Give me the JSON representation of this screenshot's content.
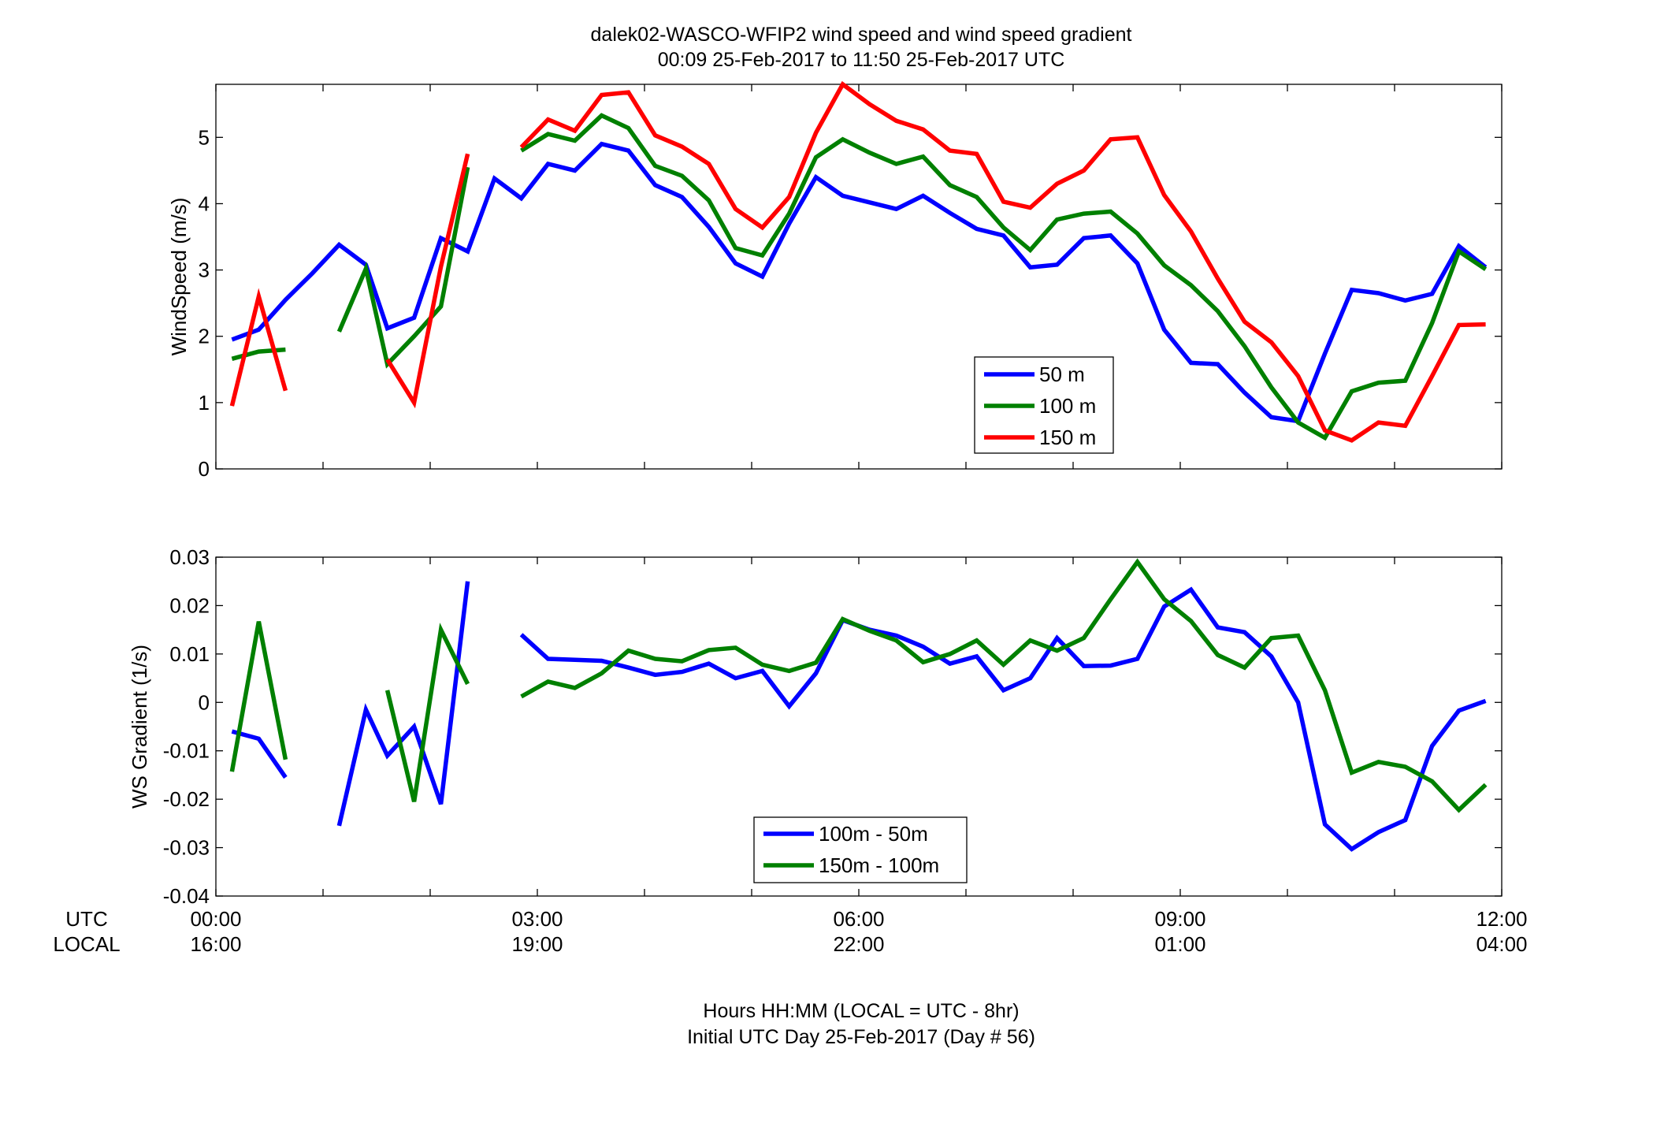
{
  "figure": {
    "title_line1": "dalek02-WASCO-WFIP2  wind speed and wind speed gradient",
    "title_line2": "00:09 25-Feb-2017 to 11:50 25-Feb-2017  UTC",
    "xlabel_line1": "Hours HH:MM  (LOCAL = UTC - 8hr)",
    "xlabel_line2": "Initial UTC Day 25-Feb-2017 (Day # 56)",
    "row_label_utc": "UTC",
    "row_label_local": "LOCAL",
    "x_ticks_utc": [
      "00:00",
      "03:00",
      "06:00",
      "09:00",
      "12:00"
    ],
    "x_ticks_local": [
      "16:00",
      "19:00",
      "22:00",
      "01:00",
      "04:00"
    ]
  },
  "chart_data": [
    {
      "type": "line",
      "ylabel": "WindSpeed (m/s)",
      "xlim": [
        0,
        12
      ],
      "ylim": [
        0,
        5.8
      ],
      "yticks": [
        0,
        1,
        2,
        3,
        4,
        5
      ],
      "ytick_labels": [
        "0",
        "1",
        "2",
        "3",
        "4",
        "5"
      ],
      "x_unit": "hours UTC",
      "legend_position": "lower-center-right",
      "series": [
        {
          "name": "50 m",
          "color": "#0000ff",
          "segments": [
            [
              [
                0.15,
                1.95
              ],
              [
                0.4,
                2.1
              ],
              [
                0.65,
                2.55
              ],
              [
                0.9,
                2.95
              ],
              [
                1.15,
                3.38
              ],
              [
                1.4,
                3.08
              ],
              [
                1.6,
                2.12
              ],
              [
                1.85,
                2.28
              ],
              [
                2.1,
                3.48
              ],
              [
                2.35,
                3.28
              ],
              [
                2.6,
                4.38
              ],
              [
                2.85,
                4.08
              ],
              [
                3.1,
                4.6
              ],
              [
                3.35,
                4.5
              ],
              [
                3.6,
                4.9
              ],
              [
                3.85,
                4.8
              ],
              [
                4.1,
                4.28
              ],
              [
                4.35,
                4.1
              ],
              [
                4.6,
                3.65
              ],
              [
                4.85,
                3.1
              ],
              [
                5.1,
                2.9
              ],
              [
                5.35,
                3.7
              ],
              [
                5.6,
                4.4
              ],
              [
                5.85,
                4.12
              ],
              [
                6.1,
                4.02
              ],
              [
                6.35,
                3.92
              ],
              [
                6.6,
                4.12
              ],
              [
                6.85,
                3.86
              ],
              [
                7.1,
                3.62
              ],
              [
                7.35,
                3.52
              ],
              [
                7.6,
                3.04
              ],
              [
                7.85,
                3.08
              ],
              [
                8.1,
                3.48
              ],
              [
                8.35,
                3.52
              ],
              [
                8.6,
                3.1
              ],
              [
                8.85,
                2.1
              ],
              [
                9.1,
                1.6
              ],
              [
                9.35,
                1.58
              ],
              [
                9.6,
                1.15
              ],
              [
                9.85,
                0.78
              ],
              [
                10.1,
                0.72
              ],
              [
                10.35,
                1.74
              ],
              [
                10.6,
                2.7
              ],
              [
                10.85,
                2.65
              ],
              [
                11.1,
                2.54
              ],
              [
                11.35,
                2.64
              ],
              [
                11.6,
                3.36
              ],
              [
                11.85,
                3.04
              ]
            ]
          ]
        },
        {
          "name": "100 m",
          "color": "#008000",
          "segments": [
            [
              [
                0.15,
                1.66
              ],
              [
                0.4,
                1.77
              ],
              [
                0.65,
                1.8
              ]
            ],
            [
              [
                1.15,
                2.07
              ],
              [
                1.4,
                3.02
              ],
              [
                1.6,
                1.58
              ],
              [
                1.85,
                2.0
              ],
              [
                2.1,
                2.45
              ],
              [
                2.35,
                4.55
              ]
            ],
            [
              [
                2.85,
                4.8
              ],
              [
                3.1,
                5.05
              ],
              [
                3.35,
                4.95
              ],
              [
                3.6,
                5.33
              ],
              [
                3.85,
                5.14
              ],
              [
                4.1,
                4.57
              ],
              [
                4.35,
                4.42
              ],
              [
                4.6,
                4.05
              ],
              [
                4.85,
                3.33
              ],
              [
                5.1,
                3.22
              ],
              [
                5.35,
                3.85
              ],
              [
                5.6,
                4.7
              ],
              [
                5.85,
                4.97
              ],
              [
                6.1,
                4.77
              ],
              [
                6.35,
                4.6
              ],
              [
                6.6,
                4.71
              ],
              [
                6.85,
                4.28
              ],
              [
                7.1,
                4.1
              ],
              [
                7.35,
                3.64
              ],
              [
                7.6,
                3.3
              ],
              [
                7.85,
                3.76
              ],
              [
                8.1,
                3.85
              ],
              [
                8.35,
                3.88
              ],
              [
                8.6,
                3.55
              ],
              [
                8.85,
                3.07
              ],
              [
                9.1,
                2.77
              ],
              [
                9.35,
                2.38
              ],
              [
                9.6,
                1.85
              ],
              [
                9.85,
                1.23
              ],
              [
                10.1,
                0.7
              ],
              [
                10.35,
                0.47
              ],
              [
                10.6,
                1.17
              ],
              [
                10.85,
                1.3
              ],
              [
                11.1,
                1.33
              ],
              [
                11.35,
                2.2
              ],
              [
                11.6,
                3.28
              ],
              [
                11.85,
                3.01
              ]
            ]
          ]
        },
        {
          "name": "150 m",
          "color": "#ff0000",
          "segments": [
            [
              [
                0.15,
                0.95
              ],
              [
                0.4,
                2.6
              ],
              [
                0.65,
                1.18
              ]
            ],
            [
              [
                1.6,
                1.65
              ],
              [
                1.85,
                1.0
              ],
              [
                2.1,
                3.05
              ],
              [
                2.35,
                4.75
              ]
            ],
            [
              [
                2.85,
                4.85
              ],
              [
                3.1,
                5.27
              ],
              [
                3.35,
                5.1
              ],
              [
                3.6,
                5.64
              ],
              [
                3.85,
                5.68
              ],
              [
                4.1,
                5.03
              ],
              [
                4.35,
                4.86
              ],
              [
                4.6,
                4.6
              ],
              [
                4.85,
                3.92
              ],
              [
                5.1,
                3.64
              ],
              [
                5.35,
                4.1
              ],
              [
                5.6,
                5.07
              ],
              [
                5.85,
                5.8
              ],
              [
                6.1,
                5.5
              ],
              [
                6.35,
                5.25
              ],
              [
                6.6,
                5.12
              ],
              [
                6.85,
                4.8
              ],
              [
                7.1,
                4.75
              ],
              [
                7.35,
                4.03
              ],
              [
                7.6,
                3.94
              ],
              [
                7.85,
                4.3
              ],
              [
                8.1,
                4.5
              ],
              [
                8.35,
                4.97
              ],
              [
                8.6,
                5.0
              ],
              [
                8.85,
                4.13
              ],
              [
                9.1,
                3.58
              ],
              [
                9.35,
                2.87
              ],
              [
                9.6,
                2.22
              ],
              [
                9.85,
                1.91
              ],
              [
                10.1,
                1.4
              ],
              [
                10.35,
                0.58
              ],
              [
                10.6,
                0.43
              ],
              [
                10.85,
                0.7
              ],
              [
                11.1,
                0.65
              ],
              [
                11.35,
                1.4
              ],
              [
                11.6,
                2.17
              ],
              [
                11.85,
                2.18
              ]
            ]
          ]
        }
      ]
    },
    {
      "type": "line",
      "ylabel": "WS Gradient (1/s)",
      "xlim": [
        0,
        12
      ],
      "ylim": [
        -0.04,
        0.03
      ],
      "yticks": [
        -0.04,
        -0.03,
        -0.02,
        -0.01,
        0,
        0.01,
        0.02,
        0.03
      ],
      "ytick_labels": [
        "-0.04",
        "-0.03",
        "-0.02",
        "-0.01",
        "0",
        "0.01",
        "0.02",
        "0.03"
      ],
      "x_unit": "hours UTC",
      "legend_position": "lower-center",
      "series": [
        {
          "name": "100m - 50m",
          "color": "#0000ff",
          "segments": [
            [
              [
                0.15,
                -0.006
              ],
              [
                0.4,
                -0.0075
              ],
              [
                0.65,
                -0.0155
              ]
            ],
            [
              [
                1.15,
                -0.0255
              ],
              [
                1.4,
                -0.0015
              ],
              [
                1.6,
                -0.011
              ],
              [
                1.85,
                -0.005
              ],
              [
                2.1,
                -0.021
              ],
              [
                2.35,
                0.025
              ]
            ],
            [
              [
                2.85,
                0.014
              ],
              [
                3.1,
                0.009
              ],
              [
                3.35,
                0.0088
              ],
              [
                3.6,
                0.0086
              ],
              [
                3.85,
                0.0072
              ],
              [
                4.1,
                0.0057
              ],
              [
                4.35,
                0.0063
              ],
              [
                4.6,
                0.008
              ],
              [
                4.85,
                0.005
              ],
              [
                5.1,
                0.0065
              ],
              [
                5.35,
                -0.0008
              ],
              [
                5.6,
                0.006
              ],
              [
                5.85,
                0.017
              ],
              [
                6.1,
                0.015
              ],
              [
                6.35,
                0.0138
              ],
              [
                6.6,
                0.0115
              ],
              [
                6.85,
                0.008
              ],
              [
                7.1,
                0.0095
              ],
              [
                7.35,
                0.0025
              ],
              [
                7.6,
                0.005
              ],
              [
                7.85,
                0.0133
              ],
              [
                8.1,
                0.0075
              ],
              [
                8.35,
                0.0076
              ],
              [
                8.6,
                0.009
              ],
              [
                8.85,
                0.0198
              ],
              [
                9.1,
                0.0233
              ],
              [
                9.35,
                0.0155
              ],
              [
                9.6,
                0.0145
              ],
              [
                9.85,
                0.0095
              ],
              [
                10.1,
                0.0
              ],
              [
                10.35,
                -0.0252
              ],
              [
                10.6,
                -0.0303
              ],
              [
                10.85,
                -0.0268
              ],
              [
                11.1,
                -0.0243
              ],
              [
                11.35,
                -0.009
              ],
              [
                11.6,
                -0.0017
              ],
              [
                11.85,
                0.0003
              ]
            ]
          ]
        },
        {
          "name": "150m - 100m",
          "color": "#008000",
          "segments": [
            [
              [
                0.15,
                -0.0143
              ],
              [
                0.4,
                0.0167
              ],
              [
                0.65,
                -0.0118
              ]
            ],
            [
              [
                1.6,
                0.0025
              ],
              [
                1.85,
                -0.0205
              ],
              [
                2.1,
                0.015
              ],
              [
                2.35,
                0.0038
              ]
            ],
            [
              [
                2.85,
                0.0012
              ],
              [
                3.1,
                0.0043
              ],
              [
                3.35,
                0.003
              ],
              [
                3.6,
                0.006
              ],
              [
                3.85,
                0.0107
              ],
              [
                4.1,
                0.009
              ],
              [
                4.35,
                0.0085
              ],
              [
                4.6,
                0.0108
              ],
              [
                4.85,
                0.0113
              ],
              [
                5.1,
                0.0078
              ],
              [
                5.35,
                0.0065
              ],
              [
                5.6,
                0.0082
              ],
              [
                5.85,
                0.0172
              ],
              [
                6.1,
                0.0148
              ],
              [
                6.35,
                0.0128
              ],
              [
                6.6,
                0.0083
              ],
              [
                6.85,
                0.01
              ],
              [
                7.1,
                0.0128
              ],
              [
                7.35,
                0.0078
              ],
              [
                7.6,
                0.0128
              ],
              [
                7.85,
                0.0107
              ],
              [
                8.1,
                0.0133
              ],
              [
                8.35,
                0.0213
              ],
              [
                8.6,
                0.029
              ],
              [
                8.85,
                0.0213
              ],
              [
                9.1,
                0.0168
              ],
              [
                9.35,
                0.0098
              ],
              [
                9.6,
                0.0072
              ],
              [
                9.85,
                0.0133
              ],
              [
                10.1,
                0.0138
              ],
              [
                10.35,
                0.0025
              ],
              [
                10.6,
                -0.0145
              ],
              [
                10.85,
                -0.0123
              ],
              [
                11.1,
                -0.0133
              ],
              [
                11.35,
                -0.0163
              ],
              [
                11.6,
                -0.0222
              ],
              [
                11.85,
                -0.017
              ]
            ]
          ]
        }
      ]
    }
  ]
}
